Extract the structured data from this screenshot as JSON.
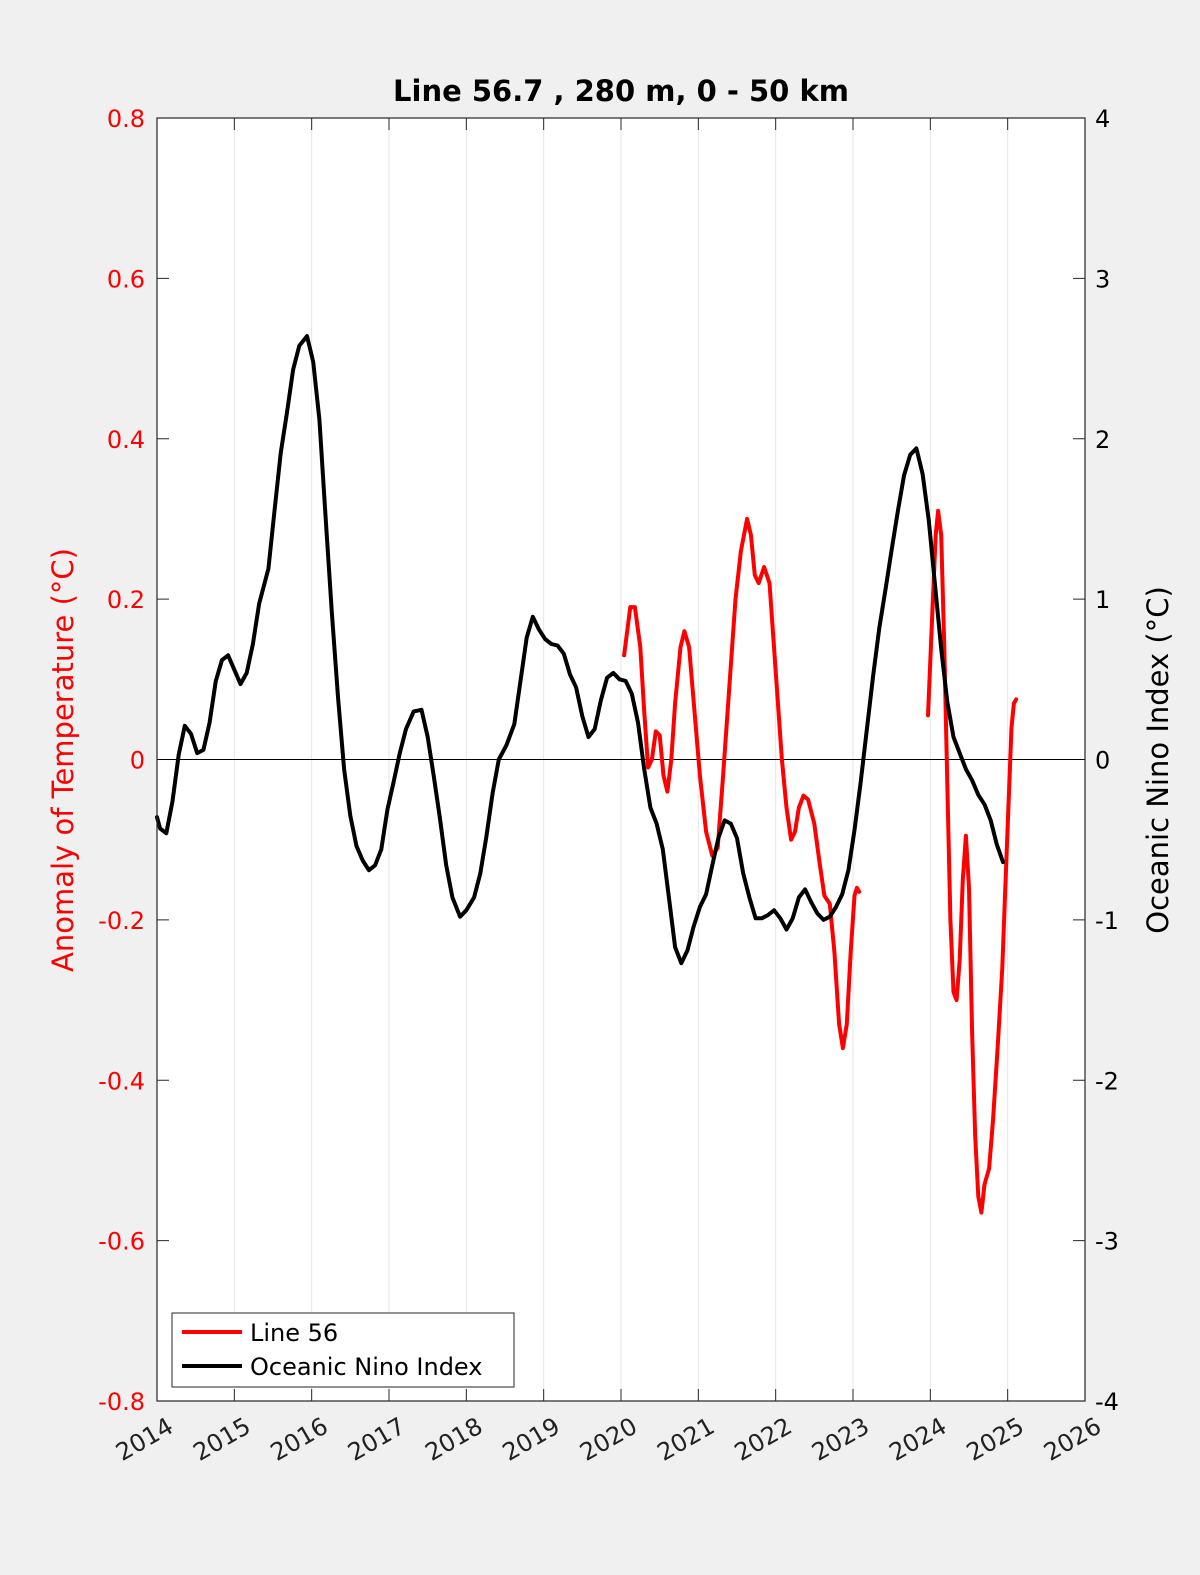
{
  "chart_data": {
    "type": "line",
    "title": "Line 56.7 , 280 m, 0 - 50 km",
    "ylabel_left": "Anomaly of Temperature (°C)",
    "ylabel_right": "Oceanic Nino Index (°C)",
    "xlim": [
      2014,
      2026
    ],
    "ylim_left": [
      -0.8,
      0.8
    ],
    "ylim_right": [
      -4,
      4
    ],
    "x_ticks": [
      "2014",
      "2015",
      "2016",
      "2017",
      "2018",
      "2019",
      "2020",
      "2021",
      "2022",
      "2023",
      "2024",
      "2025",
      "2026"
    ],
    "y_left_ticks": [
      "0.8",
      "0.6",
      "0.4",
      "0.2",
      "0",
      "-0.2",
      "-0.4",
      "-0.6",
      "-0.8"
    ],
    "y_right_ticks": [
      "4",
      "3",
      "2",
      "1",
      "0",
      "-1",
      "-2",
      "-3",
      "-4"
    ],
    "grid": "vertical",
    "legend_position": "bottom-left",
    "colors": {
      "line56": "#ff0000",
      "oni": "#000000",
      "left_axis": "#ff0000"
    },
    "series": [
      {
        "name": "Line 56",
        "axis": "left",
        "color": "#ff0000",
        "segments": [
          [
            [
              2020.04,
              0.13
            ],
            [
              2020.12,
              0.19
            ],
            [
              2020.18,
              0.19
            ],
            [
              2020.25,
              0.14
            ],
            [
              2020.3,
              0.06
            ],
            [
              2020.35,
              -0.01
            ],
            [
              2020.4,
              0.0
            ],
            [
              2020.45,
              0.035
            ],
            [
              2020.5,
              0.03
            ],
            [
              2020.55,
              -0.02
            ],
            [
              2020.6,
              -0.04
            ],
            [
              2020.65,
              0.0
            ],
            [
              2020.7,
              0.07
            ],
            [
              2020.77,
              0.14
            ],
            [
              2020.82,
              0.16
            ],
            [
              2020.88,
              0.14
            ],
            [
              2020.95,
              0.06
            ],
            [
              2021.02,
              -0.02
            ],
            [
              2021.1,
              -0.09
            ],
            [
              2021.18,
              -0.12
            ],
            [
              2021.25,
              -0.11
            ],
            [
              2021.32,
              -0.02
            ],
            [
              2021.4,
              0.09
            ],
            [
              2021.48,
              0.2
            ],
            [
              2021.55,
              0.26
            ],
            [
              2021.63,
              0.3
            ],
            [
              2021.68,
              0.28
            ],
            [
              2021.73,
              0.23
            ],
            [
              2021.78,
              0.22
            ],
            [
              2021.85,
              0.24
            ],
            [
              2021.92,
              0.22
            ],
            [
              2022.0,
              0.11
            ],
            [
              2022.08,
              0.0
            ],
            [
              2022.14,
              -0.06
            ],
            [
              2022.2,
              -0.1
            ],
            [
              2022.25,
              -0.09
            ],
            [
              2022.3,
              -0.06
            ],
            [
              2022.36,
              -0.045
            ],
            [
              2022.42,
              -0.05
            ],
            [
              2022.5,
              -0.08
            ],
            [
              2022.57,
              -0.13
            ],
            [
              2022.63,
              -0.17
            ],
            [
              2022.7,
              -0.18
            ],
            [
              2022.76,
              -0.24
            ],
            [
              2022.82,
              -0.33
            ],
            [
              2022.87,
              -0.36
            ],
            [
              2022.92,
              -0.33
            ],
            [
              2022.97,
              -0.24
            ],
            [
              2023.02,
              -0.17
            ],
            [
              2023.05,
              -0.16
            ],
            [
              2023.08,
              -0.165
            ]
          ],
          [
            [
              2023.97,
              0.055
            ],
            [
              2024.02,
              0.17
            ],
            [
              2024.07,
              0.28
            ],
            [
              2024.1,
              0.31
            ],
            [
              2024.14,
              0.28
            ],
            [
              2024.18,
              0.14
            ],
            [
              2024.22,
              -0.03
            ],
            [
              2024.26,
              -0.2
            ],
            [
              2024.3,
              -0.29
            ],
            [
              2024.34,
              -0.3
            ],
            [
              2024.38,
              -0.25
            ],
            [
              2024.42,
              -0.15
            ],
            [
              2024.46,
              -0.095
            ],
            [
              2024.5,
              -0.16
            ],
            [
              2024.54,
              -0.34
            ],
            [
              2024.58,
              -0.47
            ],
            [
              2024.62,
              -0.545
            ],
            [
              2024.66,
              -0.565
            ],
            [
              2024.7,
              -0.53
            ],
            [
              2024.76,
              -0.51
            ],
            [
              2024.81,
              -0.45
            ],
            [
              2024.87,
              -0.36
            ],
            [
              2024.93,
              -0.26
            ],
            [
              2024.97,
              -0.16
            ],
            [
              2025.01,
              -0.06
            ],
            [
              2025.05,
              0.04
            ],
            [
              2025.08,
              0.07
            ],
            [
              2025.11,
              0.075
            ]
          ]
        ]
      },
      {
        "name": "Oceanic Nino Index",
        "axis": "right",
        "color": "#000000",
        "points": [
          [
            2014.0,
            -0.36
          ],
          [
            2014.04,
            -0.43
          ],
          [
            2014.12,
            -0.46
          ],
          [
            2014.2,
            -0.26
          ],
          [
            2014.28,
            0.03
          ],
          [
            2014.36,
            0.21
          ],
          [
            2014.44,
            0.16
          ],
          [
            2014.52,
            0.04
          ],
          [
            2014.6,
            0.06
          ],
          [
            2014.68,
            0.23
          ],
          [
            2014.76,
            0.49
          ],
          [
            2014.84,
            0.62
          ],
          [
            2014.92,
            0.65
          ],
          [
            2015.0,
            0.56
          ],
          [
            2015.08,
            0.47
          ],
          [
            2015.16,
            0.54
          ],
          [
            2015.24,
            0.72
          ],
          [
            2015.32,
            0.97
          ],
          [
            2015.44,
            1.19
          ],
          [
            2015.52,
            1.55
          ],
          [
            2015.6,
            1.91
          ],
          [
            2015.68,
            2.16
          ],
          [
            2015.76,
            2.43
          ],
          [
            2015.84,
            2.58
          ],
          [
            2015.94,
            2.64
          ],
          [
            2016.02,
            2.48
          ],
          [
            2016.1,
            2.12
          ],
          [
            2016.18,
            1.51
          ],
          [
            2016.26,
            0.92
          ],
          [
            2016.34,
            0.39
          ],
          [
            2016.42,
            -0.06
          ],
          [
            2016.5,
            -0.35
          ],
          [
            2016.58,
            -0.54
          ],
          [
            2016.66,
            -0.63
          ],
          [
            2016.74,
            -0.69
          ],
          [
            2016.82,
            -0.66
          ],
          [
            2016.9,
            -0.56
          ],
          [
            2016.98,
            -0.31
          ],
          [
            2017.06,
            -0.14
          ],
          [
            2017.14,
            0.04
          ],
          [
            2017.22,
            0.19
          ],
          [
            2017.32,
            0.3
          ],
          [
            2017.42,
            0.31
          ],
          [
            2017.5,
            0.14
          ],
          [
            2017.58,
            -0.11
          ],
          [
            2017.66,
            -0.37
          ],
          [
            2017.74,
            -0.66
          ],
          [
            2017.82,
            -0.86
          ],
          [
            2017.92,
            -0.98
          ],
          [
            2018.0,
            -0.94
          ],
          [
            2018.1,
            -0.86
          ],
          [
            2018.18,
            -0.71
          ],
          [
            2018.26,
            -0.48
          ],
          [
            2018.34,
            -0.21
          ],
          [
            2018.42,
            0.0
          ],
          [
            2018.52,
            0.09
          ],
          [
            2018.62,
            0.22
          ],
          [
            2018.7,
            0.49
          ],
          [
            2018.78,
            0.76
          ],
          [
            2018.86,
            0.89
          ],
          [
            2018.94,
            0.81
          ],
          [
            2019.02,
            0.75
          ],
          [
            2019.1,
            0.72
          ],
          [
            2019.18,
            0.71
          ],
          [
            2019.26,
            0.66
          ],
          [
            2019.34,
            0.53
          ],
          [
            2019.42,
            0.45
          ],
          [
            2019.5,
            0.27
          ],
          [
            2019.58,
            0.14
          ],
          [
            2019.66,
            0.19
          ],
          [
            2019.74,
            0.37
          ],
          [
            2019.82,
            0.51
          ],
          [
            2019.9,
            0.54
          ],
          [
            2019.98,
            0.5
          ],
          [
            2020.06,
            0.49
          ],
          [
            2020.14,
            0.41
          ],
          [
            2020.22,
            0.23
          ],
          [
            2020.3,
            -0.06
          ],
          [
            2020.38,
            -0.3
          ],
          [
            2020.46,
            -0.4
          ],
          [
            2020.54,
            -0.56
          ],
          [
            2020.62,
            -0.86
          ],
          [
            2020.7,
            -1.17
          ],
          [
            2020.78,
            -1.27
          ],
          [
            2020.86,
            -1.19
          ],
          [
            2020.94,
            -1.04
          ],
          [
            2021.02,
            -0.92
          ],
          [
            2021.1,
            -0.84
          ],
          [
            2021.18,
            -0.66
          ],
          [
            2021.26,
            -0.49
          ],
          [
            2021.34,
            -0.38
          ],
          [
            2021.42,
            -0.4
          ],
          [
            2021.5,
            -0.49
          ],
          [
            2021.58,
            -0.71
          ],
          [
            2021.66,
            -0.86
          ],
          [
            2021.74,
            -0.99
          ],
          [
            2021.82,
            -0.99
          ],
          [
            2021.9,
            -0.97
          ],
          [
            2021.98,
            -0.94
          ],
          [
            2022.06,
            -0.99
          ],
          [
            2022.14,
            -1.06
          ],
          [
            2022.22,
            -0.99
          ],
          [
            2022.3,
            -0.86
          ],
          [
            2022.38,
            -0.81
          ],
          [
            2022.46,
            -0.89
          ],
          [
            2022.54,
            -0.96
          ],
          [
            2022.62,
            -1.0
          ],
          [
            2022.7,
            -0.98
          ],
          [
            2022.78,
            -0.92
          ],
          [
            2022.86,
            -0.84
          ],
          [
            2022.94,
            -0.69
          ],
          [
            2023.02,
            -0.44
          ],
          [
            2023.1,
            -0.14
          ],
          [
            2023.18,
            0.19
          ],
          [
            2023.26,
            0.52
          ],
          [
            2023.34,
            0.82
          ],
          [
            2023.42,
            1.06
          ],
          [
            2023.5,
            1.31
          ],
          [
            2023.58,
            1.55
          ],
          [
            2023.66,
            1.77
          ],
          [
            2023.74,
            1.9
          ],
          [
            2023.82,
            1.94
          ],
          [
            2023.9,
            1.78
          ],
          [
            2023.98,
            1.49
          ],
          [
            2024.06,
            1.09
          ],
          [
            2024.14,
            0.69
          ],
          [
            2024.22,
            0.36
          ],
          [
            2024.3,
            0.14
          ],
          [
            2024.38,
            0.04
          ],
          [
            2024.46,
            -0.06
          ],
          [
            2024.54,
            -0.13
          ],
          [
            2024.62,
            -0.22
          ],
          [
            2024.7,
            -0.28
          ],
          [
            2024.78,
            -0.38
          ],
          [
            2024.86,
            -0.53
          ],
          [
            2024.94,
            -0.64
          ]
        ]
      }
    ]
  },
  "legend": {
    "items": [
      {
        "label": "Line 56",
        "color": "#ff0000"
      },
      {
        "label": "Oceanic Nino Index",
        "color": "#000000"
      }
    ]
  }
}
